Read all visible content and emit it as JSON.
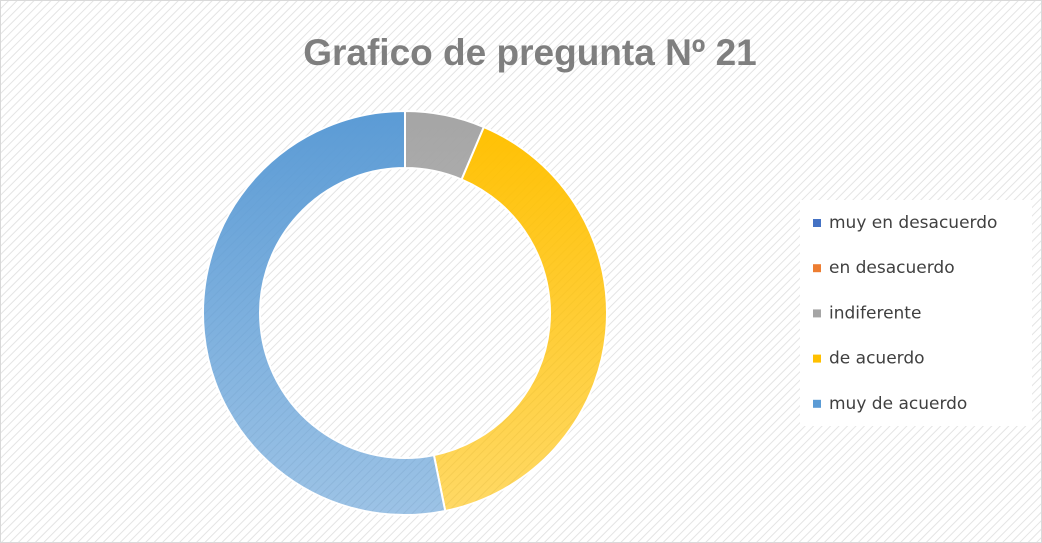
{
  "chart_data": {
    "type": "donut",
    "title": "Grafico de pregunta Nº 21",
    "categories": [
      "muy en desacuerdo",
      "en desacuerdo",
      "indiferente",
      "de acuerdo",
      "muy de acuerdo"
    ],
    "values": [
      0,
      0,
      3,
      19,
      25
    ],
    "colors": [
      "#4472c4",
      "#ed7d31",
      "#a5a5a5",
      "#ffc000",
      "#5b9bd5"
    ],
    "legend": "right"
  }
}
